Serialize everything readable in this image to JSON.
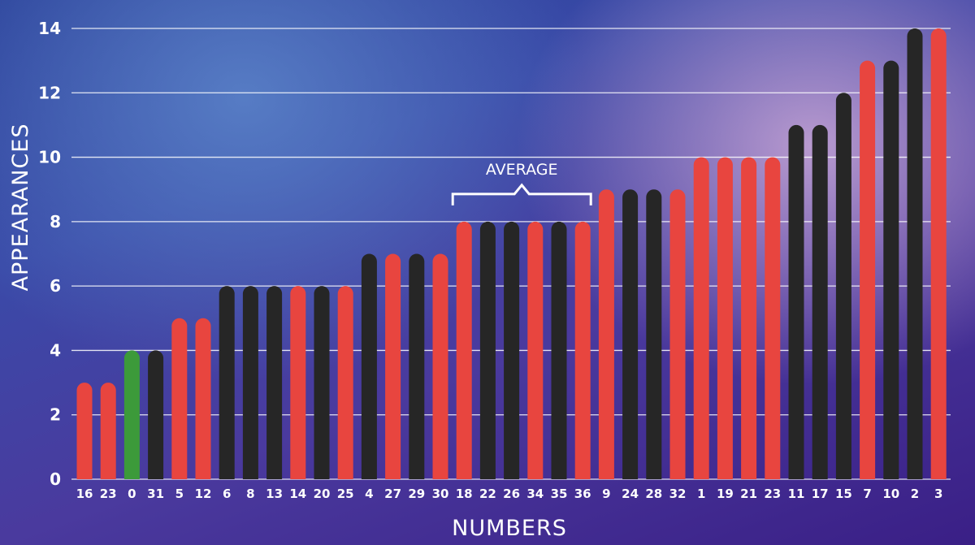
{
  "chart_data": {
    "type": "bar",
    "xlabel": "NUMBERS",
    "ylabel": "APPEARANCES",
    "ylim": [
      0,
      14
    ],
    "yticks": [
      0,
      2,
      4,
      6,
      8,
      10,
      12,
      14
    ],
    "grid": true,
    "categories": [
      "16",
      "23",
      "0",
      "31",
      "5",
      "12",
      "6",
      "8",
      "13",
      "14",
      "20",
      "25",
      "4",
      "27",
      "29",
      "30",
      "18",
      "22",
      "26",
      "34",
      "35",
      "36",
      "9",
      "24",
      "28",
      "32",
      "1",
      "19",
      "21",
      "23",
      "11",
      "17",
      "15",
      "7",
      "10",
      "2",
      "3"
    ],
    "values": [
      3,
      3,
      4,
      4,
      5,
      5,
      6,
      6,
      6,
      6,
      6,
      6,
      7,
      7,
      7,
      7,
      8,
      8,
      8,
      8,
      8,
      8,
      9,
      9,
      9,
      9,
      10,
      10,
      10,
      10,
      11,
      11,
      12,
      13,
      13,
      14,
      14
    ],
    "bar_colors": [
      "red",
      "red",
      "green",
      "black",
      "red",
      "red",
      "black",
      "black",
      "black",
      "red",
      "black",
      "red",
      "black",
      "red",
      "black",
      "red",
      "red",
      "black",
      "black",
      "red",
      "black",
      "red",
      "red",
      "black",
      "black",
      "red",
      "red",
      "red",
      "red",
      "red",
      "black",
      "black",
      "black",
      "red",
      "black",
      "black",
      "red"
    ],
    "annotation": {
      "text": "AVERAGE",
      "from_index": 16,
      "to_index": 21
    },
    "colors": {
      "red": "#e8453f",
      "black": "#262626",
      "green": "#3c9a3a",
      "grid": "#ffffff"
    }
  }
}
